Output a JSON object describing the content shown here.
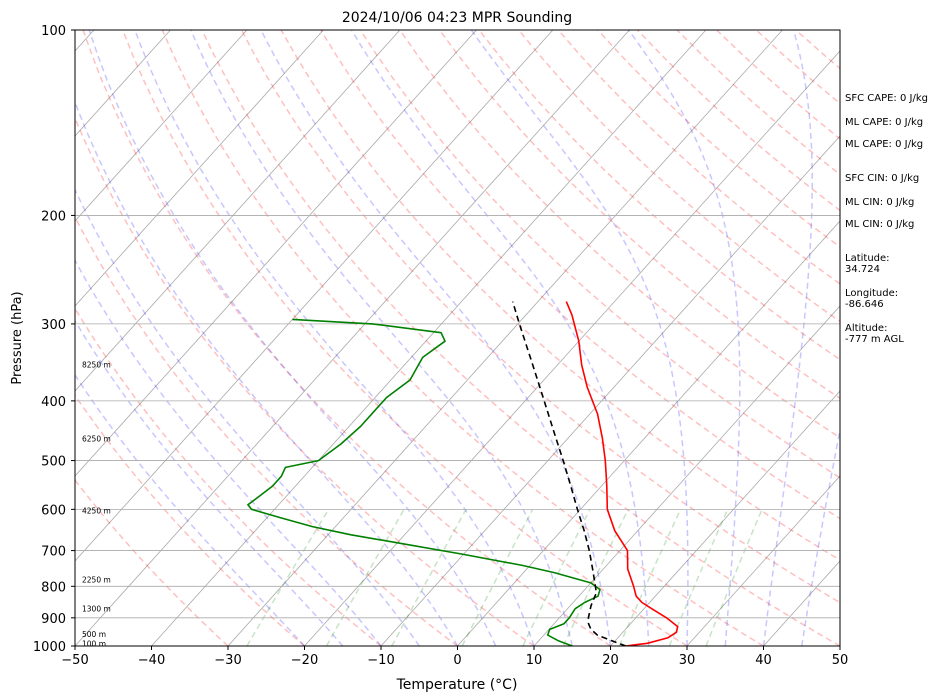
{
  "chart_data": {
    "type": "line",
    "title": "2024/10/06 04:23 MPR Sounding",
    "xlabel": "Temperature (°C)",
    "ylabel": "Pressure (hPa)",
    "xlim": [
      -50,
      50
    ],
    "ylim": [
      1000,
      100
    ],
    "y_scale": "log",
    "x_ticks": [
      -50,
      -40,
      -30,
      -20,
      -10,
      0,
      10,
      20,
      30,
      40,
      50
    ],
    "y_ticks": [
      1000,
      900,
      800,
      700,
      600,
      500,
      400,
      300,
      200,
      100
    ],
    "grid": "horizontal at pressure ticks",
    "series": [
      {
        "color": "#ff0000",
        "points": [
          [
            1000,
            22
          ],
          [
            990,
            24.5
          ],
          [
            970,
            26.5
          ],
          [
            950,
            27
          ],
          [
            930,
            26.5
          ],
          [
            900,
            24
          ],
          [
            870,
            21
          ],
          [
            850,
            19
          ],
          [
            830,
            17.5
          ],
          [
            800,
            16
          ],
          [
            750,
            13.2
          ],
          [
            700,
            11
          ],
          [
            650,
            7
          ],
          [
            600,
            3.5
          ],
          [
            550,
            0.7
          ],
          [
            500,
            -2.5
          ],
          [
            460,
            -5.5
          ],
          [
            420,
            -9
          ],
          [
            380,
            -13.5
          ],
          [
            350,
            -16.8
          ],
          [
            320,
            -20
          ],
          [
            290,
            -24
          ],
          [
            276,
            -26.3
          ]
        ]
      },
      {
        "color": "#008000",
        "points": [
          [
            1000,
            15
          ],
          [
            980,
            12.5
          ],
          [
            960,
            10.5
          ],
          [
            940,
            10.1
          ],
          [
            920,
            11.3
          ],
          [
            900,
            11.3
          ],
          [
            870,
            11
          ],
          [
            850,
            11.5
          ],
          [
            830,
            12.5
          ],
          [
            810,
            12
          ],
          [
            790,
            10
          ],
          [
            760,
            4
          ],
          [
            740,
            -1
          ],
          [
            710,
            -10
          ],
          [
            680,
            -20
          ],
          [
            660,
            -27
          ],
          [
            640,
            -33
          ],
          [
            620,
            -38
          ],
          [
            600,
            -43
          ],
          [
            590,
            -44
          ],
          [
            570,
            -43.5
          ],
          [
            550,
            -43
          ],
          [
            530,
            -43
          ],
          [
            513,
            -43.5
          ],
          [
            500,
            -40
          ],
          [
            470,
            -39
          ],
          [
            440,
            -38.5
          ],
          [
            415,
            -38.5
          ],
          [
            395,
            -38.5
          ],
          [
            370,
            -37.5
          ],
          [
            340,
            -38.5
          ],
          [
            320,
            -37.5
          ],
          [
            310,
            -39
          ],
          [
            300,
            -49
          ],
          [
            295,
            -60
          ]
        ]
      },
      {
        "color": "#000000",
        "line_style": "dashed",
        "points": [
          [
            1000,
            22
          ],
          [
            980,
            19.5
          ],
          [
            960,
            17
          ],
          [
            940,
            15.5
          ],
          [
            920,
            14.5
          ],
          [
            900,
            13.8
          ],
          [
            860,
            12.7
          ],
          [
            820,
            11.9
          ],
          [
            800,
            11
          ],
          [
            750,
            8.6
          ],
          [
            700,
            6
          ],
          [
            650,
            3
          ],
          [
            600,
            -0.4
          ],
          [
            550,
            -4
          ],
          [
            500,
            -8
          ],
          [
            450,
            -12.5
          ],
          [
            400,
            -17.5
          ],
          [
            350,
            -23.2
          ],
          [
            300,
            -29.8
          ],
          [
            276,
            -33.3
          ]
        ]
      }
    ],
    "height_labels": [
      {
        "p": 990,
        "label": "100 m"
      },
      {
        "p": 956,
        "label": "500 m"
      },
      {
        "p": 870,
        "label": "1300 m"
      },
      {
        "p": 780,
        "label": "2250 m"
      },
      {
        "p": 603,
        "label": "4250 m"
      },
      {
        "p": 460,
        "label": "6250 m"
      },
      {
        "p": 349,
        "label": "8250 m"
      }
    ],
    "side_text": [
      "SFC CAPE: 0 J/kg",
      "ML CAPE: 0 J/kg",
      "ML CAPE: 0 J/kg",
      "SFC CIN: 0 J/kg",
      "ML CIN: 0 J/kg",
      "ML CIN: 0 J/kg",
      "Latitude:\n34.724",
      "Longitude:\n-86.646",
      "Altitude:\n-777 m AGL"
    ]
  }
}
